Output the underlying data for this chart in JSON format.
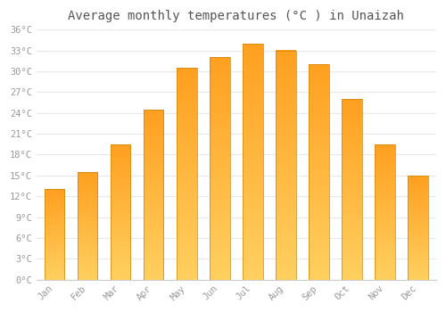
{
  "title": "Average monthly temperatures (°C ) in Unaizah",
  "months": [
    "Jan",
    "Feb",
    "Mar",
    "Apr",
    "May",
    "Jun",
    "Jul",
    "Aug",
    "Sep",
    "Oct",
    "Nov",
    "Dec"
  ],
  "temperatures": [
    13,
    15.5,
    19.5,
    24.5,
    30.5,
    32,
    34,
    33,
    31,
    26,
    19.5,
    15
  ],
  "bar_color_bottom": "#FFD060",
  "bar_color_top": "#FFA020",
  "bar_edge_color": "#C8860A",
  "background_color": "#ffffff",
  "grid_color": "#e8e8e8",
  "tick_label_color": "#999999",
  "title_color": "#555555",
  "ylim": [
    0,
    36
  ],
  "ytick_step": 3,
  "title_fontsize": 10,
  "tick_fontsize": 7.5,
  "bar_width": 0.6
}
